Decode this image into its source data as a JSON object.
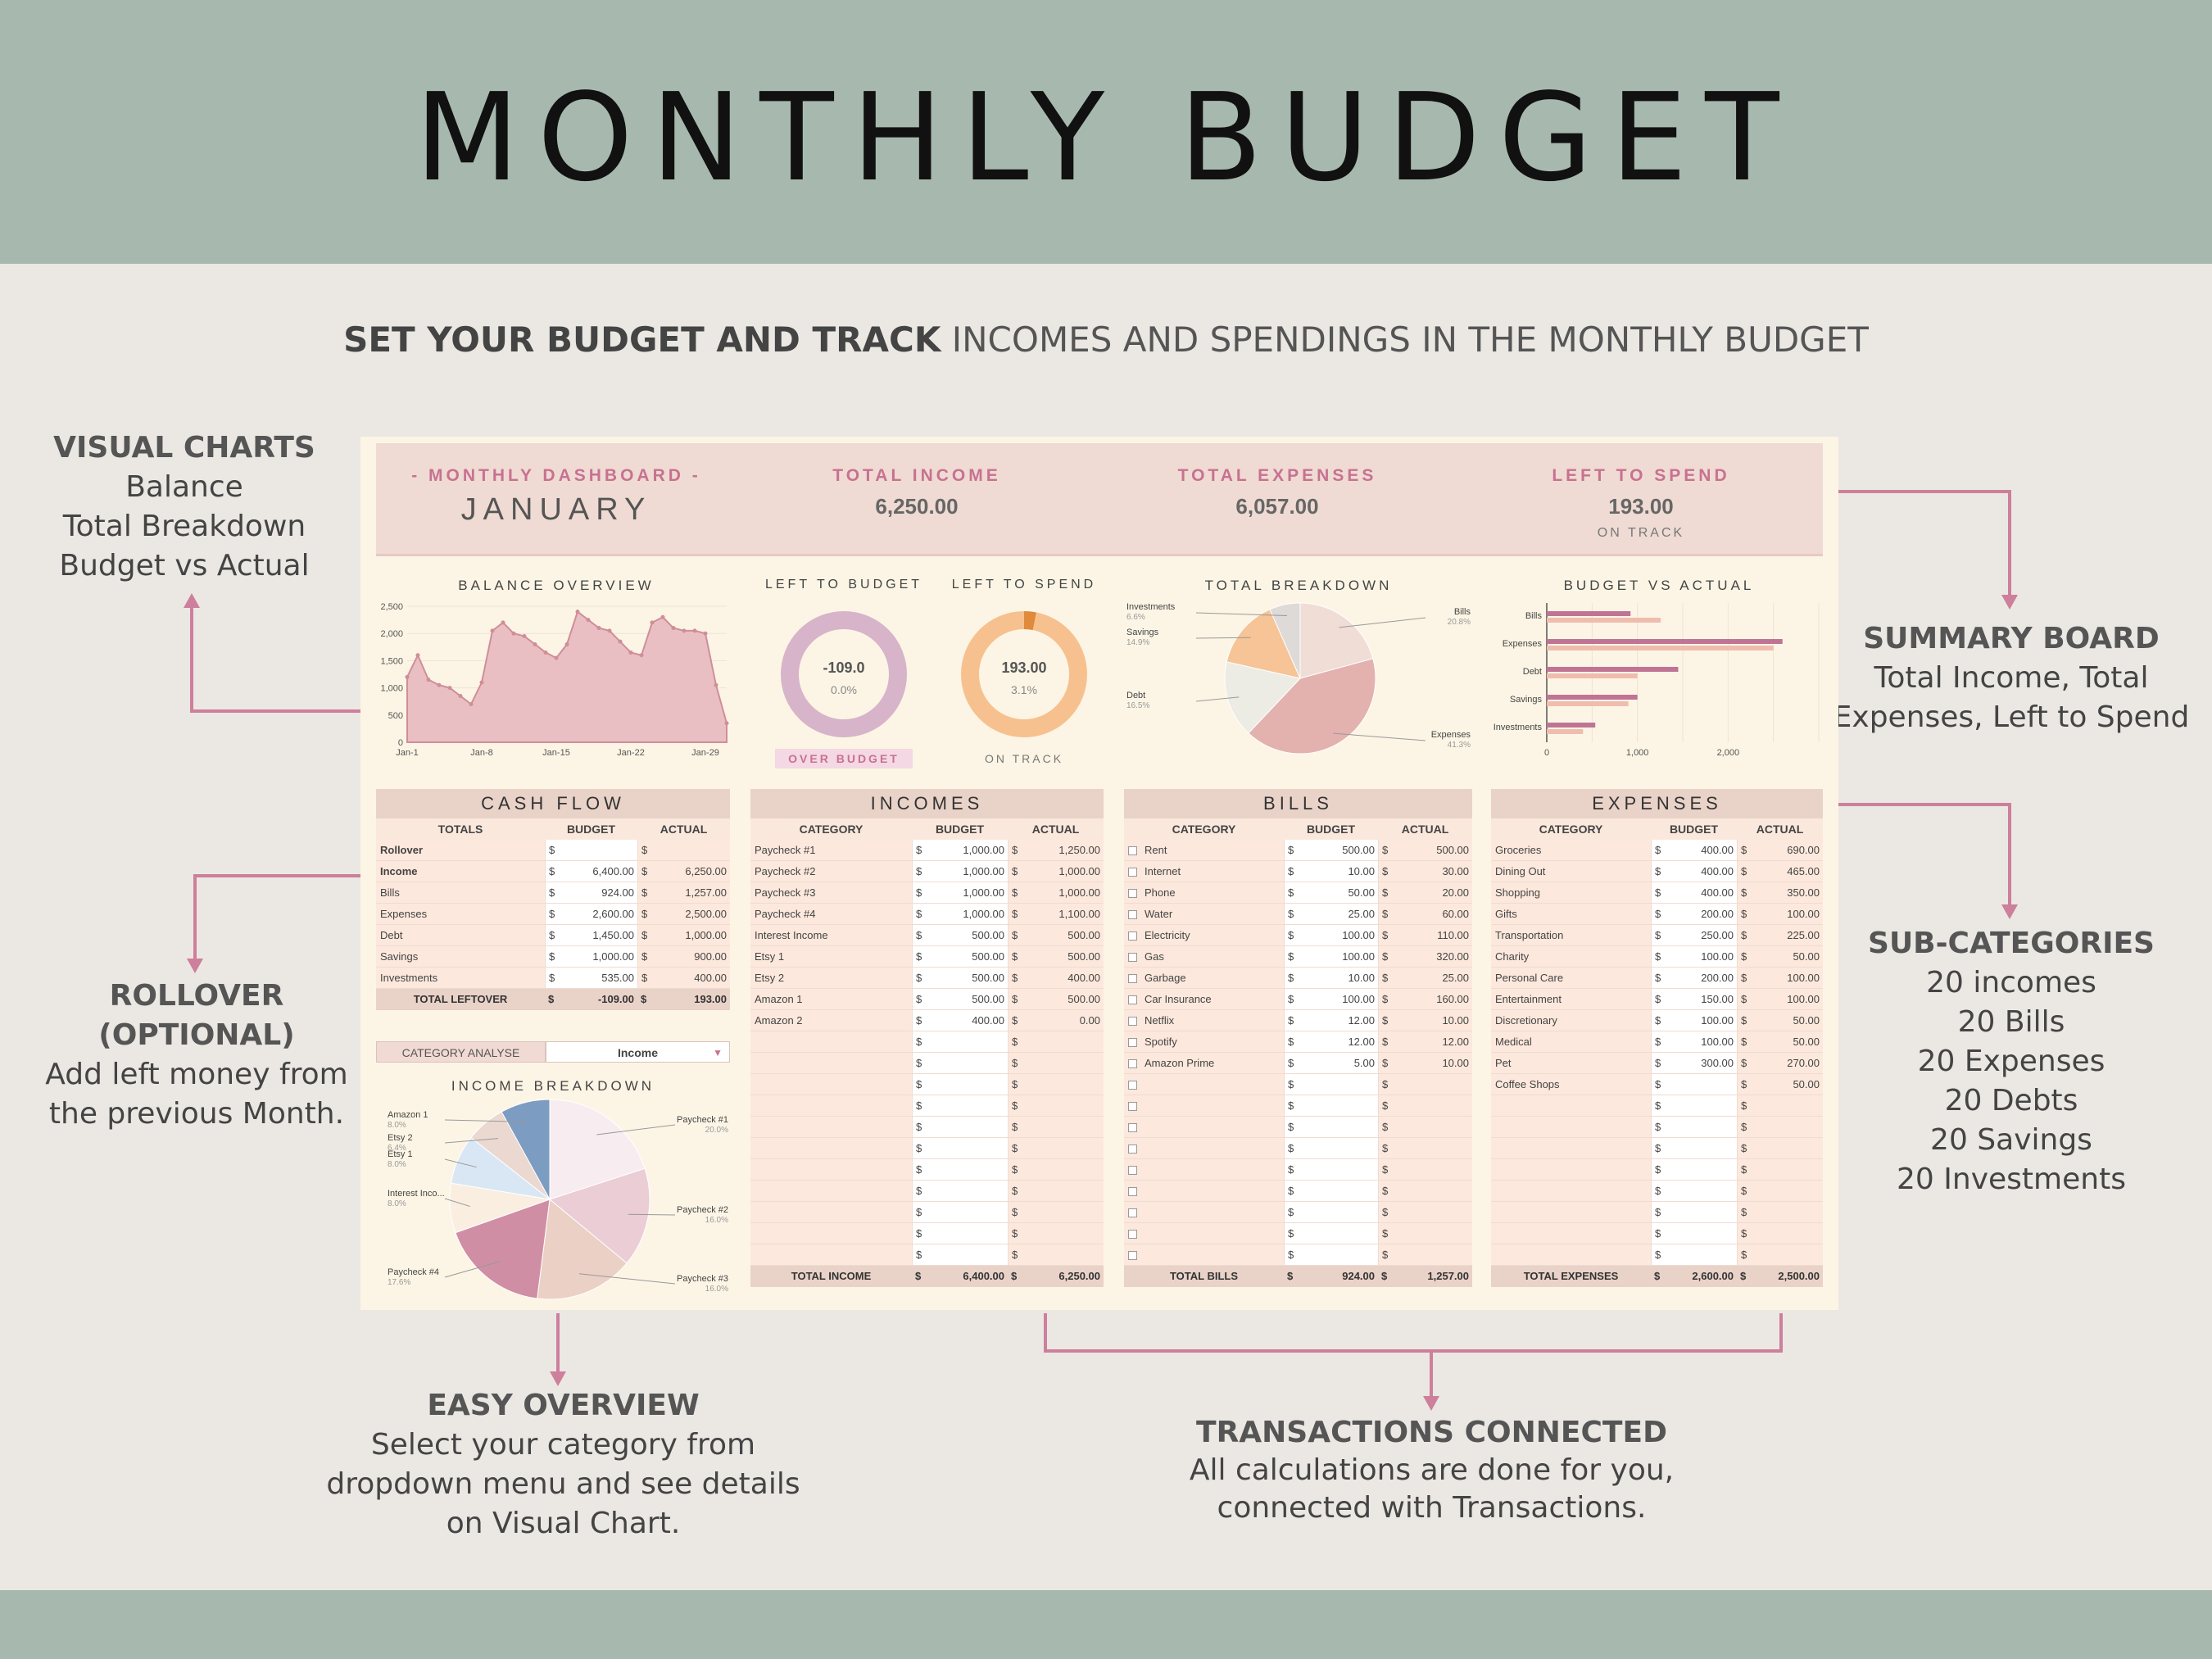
{
  "header": {
    "title": "MONTHLY BUDGET"
  },
  "subtitle": {
    "bold": "SET YOUR BUDGET AND TRACK",
    "rest": " INCOMES AND SPENDINGS IN THE MONTHLY BUDGET"
  },
  "annotations": {
    "visual": {
      "title": "VISUAL CHARTS",
      "l1": "Balance",
      "l2": "Total Breakdown",
      "l3": "Budget vs Actual"
    },
    "summary": {
      "title": "SUMMARY BOARD",
      "l1": "Total Income, Total",
      "l2": "Expenses, Left to Spend"
    },
    "subcat": {
      "title": "SUB-CATEGORIES",
      "l1": "20 incomes",
      "l2": "20 Bills",
      "l3": "20 Expenses",
      "l4": "20 Debts",
      "l5": "20 Savings",
      "l6": "20 Investments"
    },
    "rollover": {
      "t1": "ROLLOVER",
      "t2": "(OPTIONAL)",
      "l1": "Add left money from",
      "l2": "the previous Month."
    },
    "easy": {
      "title": "EASY OVERVIEW",
      "l1": "Select your category from",
      "l2": "dropdown menu and see details",
      "l3": "on Visual Chart."
    },
    "trans": {
      "title": "TRANSACTIONS CONNECTED",
      "l1": "All calculations are done for you,",
      "l2": "connected with Transactions."
    }
  },
  "summary": {
    "dash_label": "- MONTHLY DASHBOARD -",
    "month": "JANUARY",
    "income_label": "TOTAL INCOME",
    "income": "6,250.00",
    "expenses_label": "TOTAL EXPENSES",
    "expenses": "6,057.00",
    "left_label": "LEFT TO SPEND",
    "left": "193.00",
    "left_status": "ON TRACK"
  },
  "colors": {
    "accent": "#c87191",
    "banner": "#a7b9ae",
    "pink": "#dcaeb4",
    "orange": "#f7c18f",
    "purple": "#d7b4c9"
  },
  "balance": {
    "title": "BALANCE OVERVIEW",
    "yticks": [
      "2,500",
      "2,000",
      "1,500",
      "1,000",
      "500",
      "0"
    ],
    "xticks": [
      "Jan-1",
      "Jan-8",
      "Jan-15",
      "Jan-22",
      "Jan-29"
    ],
    "values": [
      1200,
      1600,
      1150,
      1050,
      1000,
      850,
      700,
      1100,
      2050,
      2200,
      2000,
      1950,
      1800,
      1650,
      1550,
      1800,
      2400,
      2250,
      2100,
      2050,
      1850,
      1650,
      1600,
      2200,
      2300,
      2100,
      2050,
      2050,
      2000,
      1050,
      350
    ]
  },
  "gauges": {
    "left_budget": {
      "title": "LEFT TO BUDGET",
      "value": "-109.0",
      "pct": "0.0%",
      "status": "OVER BUDGET",
      "fraction": 0
    },
    "left_spend": {
      "title": "LEFT TO SPEND",
      "value": "193.00",
      "pct": "3.1%",
      "status": "ON TRACK",
      "fraction": 0.031
    }
  },
  "total_breakdown": {
    "title": "TOTAL BREAKDOWN",
    "slices": [
      {
        "name": "Bills",
        "pct": "20.8%",
        "value": 20.8,
        "color": "#efddd6"
      },
      {
        "name": "Expenses",
        "pct": "41.3%",
        "value": 41.3,
        "color": "#e3b1ae"
      },
      {
        "name": "Debt",
        "pct": "16.5%",
        "value": 16.5,
        "color": "#ecebe4"
      },
      {
        "name": "Savings",
        "pct": "14.9%",
        "value": 14.9,
        "color": "#f6c497"
      },
      {
        "name": "Investments",
        "pct": "6.6%",
        "value": 6.6,
        "color": "#dedad8"
      }
    ]
  },
  "budget_vs_actual": {
    "title": "BUDGET VS ACTUAL",
    "categories": [
      "Bills",
      "Expenses",
      "Debt",
      "Savings",
      "Investments"
    ],
    "budget": [
      924,
      2600,
      1450,
      1000,
      535
    ],
    "actual": [
      1257,
      2500,
      1000,
      900,
      400
    ],
    "xticks": [
      "0",
      "1,000",
      "2,000"
    ],
    "xmax": 3000
  },
  "cashflow": {
    "title": "CASH FLOW",
    "cols": [
      "TOTALS",
      "BUDGET",
      "ACTUAL"
    ],
    "rows": [
      [
        "Rollover",
        "",
        ""
      ],
      [
        "Income",
        "6,400.00",
        "6,250.00"
      ],
      [
        "Bills",
        "924.00",
        "1,257.00"
      ],
      [
        "Expenses",
        "2,600.00",
        "2,500.00"
      ],
      [
        "Debt",
        "1,450.00",
        "1,000.00"
      ],
      [
        "Savings",
        "1,000.00",
        "900.00"
      ],
      [
        "Investments",
        "535.00",
        "400.00"
      ]
    ],
    "total": [
      "TOTAL LEFTOVER",
      "-109.00",
      "193.00"
    ]
  },
  "category_analyse": {
    "label": "CATEGORY ANALYSE",
    "value": "Income"
  },
  "income_breakdown": {
    "title": "INCOME BREAKDOWN",
    "slices": [
      {
        "name": "Paycheck #1",
        "pct": "20.0%",
        "value": 20.0,
        "color": "#f7ecf0"
      },
      {
        "name": "Paycheck #2",
        "pct": "16.0%",
        "value": 16.0,
        "color": "#ebcdd5"
      },
      {
        "name": "Paycheck #3",
        "pct": "16.0%",
        "value": 16.0,
        "color": "#ebd0c6"
      },
      {
        "name": "Paycheck #4",
        "pct": "17.6%",
        "value": 17.6,
        "color": "#d08ea4"
      },
      {
        "name": "Interest Inco...",
        "pct": "8.0%",
        "value": 8.0,
        "color": "#f9eee0"
      },
      {
        "name": "Etsy 1",
        "pct": "8.0%",
        "value": 8.0,
        "color": "#d9e7f4"
      },
      {
        "name": "Etsy 2",
        "pct": "6.4%",
        "value": 6.4,
        "color": "#ebd8d0"
      },
      {
        "name": "Amazon 1",
        "pct": "8.0%",
        "value": 8.0,
        "color": "#7d9cc1"
      }
    ]
  },
  "incomes": {
    "title": "INCOMES",
    "cols": [
      "CATEGORY",
      "BUDGET",
      "ACTUAL"
    ],
    "rows": [
      [
        "Paycheck #1",
        "1,000.00",
        "1,250.00"
      ],
      [
        "Paycheck #2",
        "1,000.00",
        "1,000.00"
      ],
      [
        "Paycheck #3",
        "1,000.00",
        "1,000.00"
      ],
      [
        "Paycheck #4",
        "1,000.00",
        "1,100.00"
      ],
      [
        "Interest Income",
        "500.00",
        "500.00"
      ],
      [
        "Etsy 1",
        "500.00",
        "500.00"
      ],
      [
        "Etsy 2",
        "500.00",
        "400.00"
      ],
      [
        "Amazon 1",
        "500.00",
        "500.00"
      ],
      [
        "Amazon 2",
        "400.00",
        "0.00"
      ],
      [
        "",
        "",
        ""
      ],
      [
        "",
        "",
        ""
      ],
      [
        "",
        "",
        ""
      ],
      [
        "",
        "",
        ""
      ],
      [
        "",
        "",
        ""
      ],
      [
        "",
        "",
        ""
      ],
      [
        "",
        "",
        ""
      ],
      [
        "",
        "",
        ""
      ],
      [
        "",
        "",
        ""
      ],
      [
        "",
        "",
        ""
      ],
      [
        "",
        "",
        ""
      ]
    ],
    "total": [
      "TOTAL INCOME",
      "6,400.00",
      "6,250.00"
    ]
  },
  "bills": {
    "title": "BILLS",
    "cols": [
      "CATEGORY",
      "BUDGET",
      "ACTUAL"
    ],
    "rows": [
      [
        "Rent",
        "500.00",
        "500.00"
      ],
      [
        "Internet",
        "10.00",
        "30.00"
      ],
      [
        "Phone",
        "50.00",
        "20.00"
      ],
      [
        "Water",
        "25.00",
        "60.00"
      ],
      [
        "Electricity",
        "100.00",
        "110.00"
      ],
      [
        "Gas",
        "100.00",
        "320.00"
      ],
      [
        "Garbage",
        "10.00",
        "25.00"
      ],
      [
        "Car Insurance",
        "100.00",
        "160.00"
      ],
      [
        "Netflix",
        "12.00",
        "10.00"
      ],
      [
        "Spotify",
        "12.00",
        "12.00"
      ],
      [
        "Amazon Prime",
        "5.00",
        "10.00"
      ],
      [
        "",
        "",
        ""
      ],
      [
        "",
        "",
        ""
      ],
      [
        "",
        "",
        ""
      ],
      [
        "",
        "",
        ""
      ],
      [
        "",
        "",
        ""
      ],
      [
        "",
        "",
        ""
      ],
      [
        "",
        "",
        ""
      ],
      [
        "",
        "",
        ""
      ],
      [
        "",
        "",
        ""
      ]
    ],
    "total": [
      "TOTAL BILLS",
      "924.00",
      "1,257.00"
    ]
  },
  "expenses": {
    "title": "EXPENSES",
    "cols": [
      "CATEGORY",
      "BUDGET",
      "ACTUAL"
    ],
    "rows": [
      [
        "Groceries",
        "400.00",
        "690.00"
      ],
      [
        "Dining Out",
        "400.00",
        "465.00"
      ],
      [
        "Shopping",
        "400.00",
        "350.00"
      ],
      [
        "Gifts",
        "200.00",
        "100.00"
      ],
      [
        "Transportation",
        "250.00",
        "225.00"
      ],
      [
        "Charity",
        "100.00",
        "50.00"
      ],
      [
        "Personal Care",
        "200.00",
        "100.00"
      ],
      [
        "Entertainment",
        "150.00",
        "100.00"
      ],
      [
        "Discretionary",
        "100.00",
        "50.00"
      ],
      [
        "Medical",
        "100.00",
        "50.00"
      ],
      [
        "Pet",
        "300.00",
        "270.00"
      ],
      [
        "Coffee Shops",
        "",
        "50.00"
      ],
      [
        "",
        "",
        ""
      ],
      [
        "",
        "",
        ""
      ],
      [
        "",
        "",
        ""
      ],
      [
        "",
        "",
        ""
      ],
      [
        "",
        "",
        ""
      ],
      [
        "",
        "",
        ""
      ],
      [
        "",
        "",
        ""
      ],
      [
        "",
        "",
        ""
      ]
    ],
    "total": [
      "TOTAL EXPENSES",
      "2,600.00",
      "2,500.00"
    ]
  },
  "currency": "$"
}
